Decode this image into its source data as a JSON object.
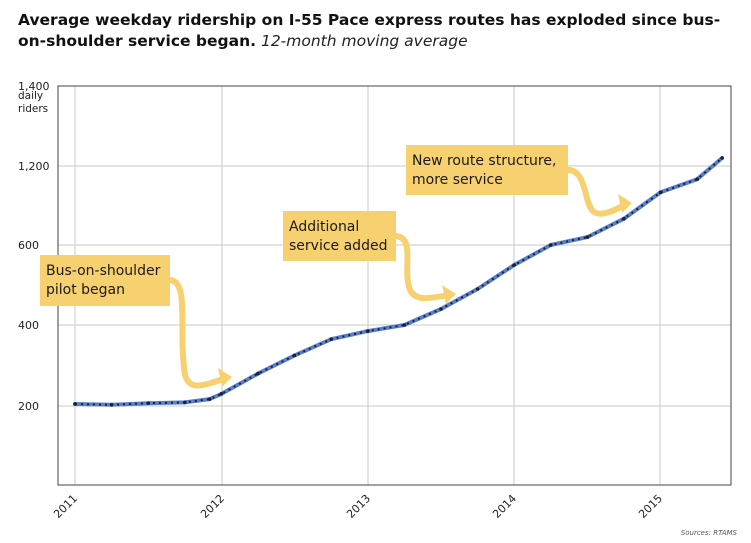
{
  "title": {
    "bold": "Average weekday ridership on I-55 Pace express routes has exploded since bus-on-shoulder service began.",
    "italic": "12-month moving average"
  },
  "source": "Sources: RTAMS",
  "colors": {
    "line": "#5b7fc8",
    "dots": "#16213a",
    "annotation_box": "#f7d170",
    "arrow": "#f7d170",
    "grid": "#c8c8c8"
  },
  "chart_data": {
    "type": "line",
    "title": "Average weekday ridership on I-55 Pace express routes has exploded since bus-on-shoulder service began.",
    "subtitle": "12-month moving average",
    "ylabel": "daily riders",
    "y_unit_lines": [
      "daily",
      "riders"
    ],
    "xlabel": "",
    "x_ticks": [
      "2011",
      "2012",
      "2013",
      "2014",
      "2015"
    ],
    "y_ticks": [
      200,
      400,
      600,
      1200,
      1400
    ],
    "y_tick_labels": [
      "200",
      "400",
      "600",
      "1,200",
      "1,400"
    ],
    "y_axis_note": "non-linear axis as printed",
    "x": [
      2011.0,
      2011.25,
      2011.5,
      2011.75,
      2011.92,
      2012.0,
      2012.25,
      2012.5,
      2012.75,
      2013.0,
      2013.25,
      2013.5,
      2013.75,
      2014.0,
      2014.25,
      2014.5,
      2014.75,
      2015.0,
      2015.25,
      2015.42
    ],
    "values": [
      205,
      203,
      207,
      209,
      217,
      230,
      280,
      325,
      365,
      385,
      400,
      440,
      490,
      550,
      600,
      660,
      800,
      1000,
      1100,
      1220
    ],
    "annotations": [
      {
        "lines": [
          "Bus-on-shoulder",
          "pilot began"
        ],
        "points_to_x": 2012.0
      },
      {
        "lines": [
          "Additional",
          "service added"
        ],
        "points_to_x": 2013.58
      },
      {
        "lines": [
          "New route structure,",
          "more service"
        ],
        "points_to_x": 2014.75
      }
    ]
  }
}
